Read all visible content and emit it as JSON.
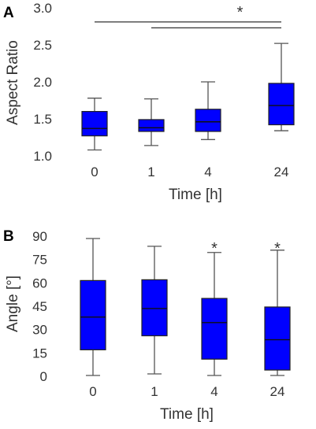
{
  "colors": {
    "box_fill": "#0000ff",
    "line": "#555555",
    "text": "#333333"
  },
  "chart_data": [
    {
      "panel": "A",
      "type": "box",
      "categories": [
        "0",
        "1",
        "4",
        "24"
      ],
      "xlabel": "Time [h]",
      "ylabel": "Aspect Ratio",
      "ylim": [
        1.0,
        3.0
      ],
      "yticks": [
        "1.0",
        "1.5",
        "2.0",
        "2.5",
        "3.0"
      ],
      "ytick_values": [
        1.0,
        1.5,
        2.0,
        2.5,
        3.0
      ],
      "boxes": [
        {
          "min": 1.08,
          "q1": 1.27,
          "median": 1.37,
          "q3": 1.6,
          "max": 1.78
        },
        {
          "min": 1.14,
          "q1": 1.33,
          "median": 1.38,
          "q3": 1.49,
          "max": 1.77
        },
        {
          "min": 1.22,
          "q1": 1.33,
          "median": 1.46,
          "q3": 1.63,
          "max": 2.0
        },
        {
          "min": 1.34,
          "q1": 1.42,
          "median": 1.68,
          "q3": 1.98,
          "max": 2.52
        }
      ],
      "significance": {
        "label": "*",
        "brackets": [
          {
            "from": 0,
            "to": 3,
            "y": 2.81
          },
          {
            "from": 1,
            "to": 3,
            "y": 2.73
          }
        ]
      }
    },
    {
      "panel": "B",
      "type": "box",
      "categories": [
        "0",
        "1",
        "4",
        "24"
      ],
      "xlabel": "Time [h]",
      "ylabel": "Angle [°]",
      "ylim": [
        0,
        90
      ],
      "yticks": [
        "0",
        "15",
        "30",
        "45",
        "60",
        "75",
        "90"
      ],
      "ytick_values": [
        0,
        15,
        30,
        45,
        60,
        75,
        90
      ],
      "boxes": [
        {
          "min": 0.5,
          "q1": 17,
          "median": 38,
          "q3": 61.5,
          "max": 88.5
        },
        {
          "min": 1.5,
          "q1": 26,
          "median": 43.5,
          "q3": 62,
          "max": 83.5
        },
        {
          "min": 0.5,
          "q1": 11,
          "median": 34.5,
          "q3": 50,
          "max": 79.5
        },
        {
          "min": 0.5,
          "q1": 4,
          "median": 23.5,
          "q3": 44.5,
          "max": 81
        }
      ],
      "significance": {
        "label": "*",
        "stars": [
          {
            "category": 2,
            "y": 86
          },
          {
            "category": 3,
            "y": 86
          }
        ]
      }
    }
  ]
}
